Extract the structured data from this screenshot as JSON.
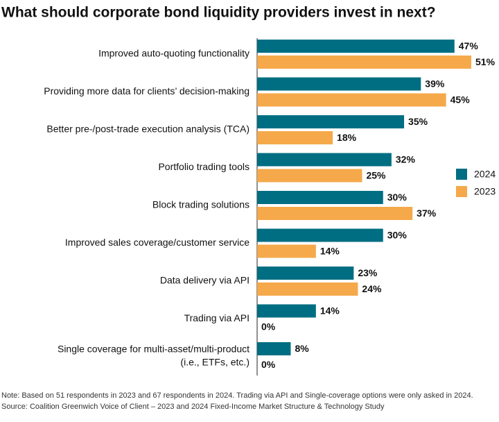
{
  "chart_data": {
    "type": "hbar",
    "title": "What should corporate bond liquidity providers invest in next?",
    "categories": [
      "Improved auto-quoting functionality",
      "Providing more data for clients’ decision-making",
      "Better pre-/post-trade execution analysis (TCA)",
      "Portfolio trading tools",
      "Block trading solutions",
      "Improved sales coverage/customer service",
      "Data delivery via API",
      "Trading via API",
      [
        "Single coverage for multi-asset/multi-product",
        "(i.e., ETFs, etc.)"
      ]
    ],
    "series": [
      {
        "name": "2024",
        "color": "#006e82",
        "values": [
          47,
          39,
          35,
          32,
          30,
          30,
          23,
          14,
          8
        ],
        "value_labels": [
          "47%",
          "39%",
          "35%",
          "32%",
          "30%",
          "30%",
          "23%",
          "14%",
          "8%"
        ]
      },
      {
        "name": "2023",
        "color": "#f5a94a",
        "values": [
          51,
          45,
          18,
          25,
          37,
          14,
          24,
          0,
          0
        ],
        "value_labels": [
          "51%",
          "45%",
          "18%",
          "25%",
          "37%",
          "14%",
          "24%",
          "0%",
          "0%"
        ]
      }
    ],
    "legend": "right",
    "notes": [
      "Note: Based on 51 respondents in 2023 and 67 respondents in 2024. Trading via API and Single-coverage options were only asked in 2024.",
      "Source: Coalition Greenwich Voice of Client – 2023 and 2024 Fixed-Income Market Structure & Technology Study"
    ]
  }
}
